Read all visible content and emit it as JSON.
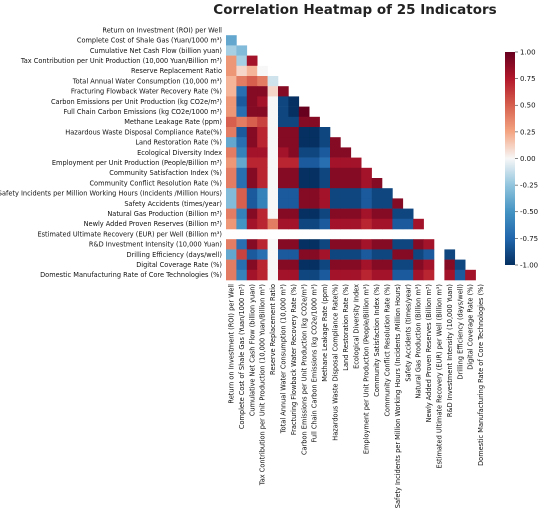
{
  "chart_data": {
    "type": "heatmap",
    "title": "Correlation Heatmap of 25 Indicators",
    "xlabel": "",
    "ylabel": "",
    "colormap": "RdBu_r",
    "colors": {
      "low": "#053061",
      "mid": "#f7f7f7",
      "high": "#67001f"
    },
    "vmin": -1.0,
    "vmax": 1.0,
    "colorbar_ticks": [
      "1.00",
      "0.75",
      "0.50",
      "0.25",
      "0.00",
      "-0.25",
      "-0.50",
      "-0.75",
      "-1.00"
    ],
    "mask": "upper triangle (lower triangle shown, diagonal excluded)",
    "labels": [
      "Return on Investment (ROI) per Well",
      "Complete Cost of Shale Gas (Yuan/1000 m³)",
      "Cumulative Net Cash Flow (billion yuan)",
      "Tax Contribution per Unit Production (10,000 Yuan/Billion m³)",
      "Reserve Replacement Ratio",
      "Total Annual Water Consumption (10,000 m³)",
      "Fracturing Flowback Water Recovery Rate (%)",
      "Carbon Emissions per Unit Production (kg CO2e/m³)",
      "Full Chain Carbon Emissions (kg CO2e/1000 m³)",
      "Methane Leakage Rate (ppm)",
      "Hazardous Waste Disposal Compliance Rate(%)",
      "Land Restoration Rate (%)",
      "Ecological Diversity Index",
      "Employment per Unit Production (People/Billion m³)",
      "Community Satisfaction Index (%)",
      "Community Conflict Resolution Rate (%)",
      "Safety Incidents per Million Working Hours (Incidents /Million Hours)",
      "Safety Accidents (times/year)",
      "Natural Gas Production (Billion m³)",
      "Newly Added Proven Reserves (Billion m³)",
      "Estimated Ultimate Recovery (EUR) per Well (Billion m³)",
      "R&D Investment Intensity (10,000 Yuan)",
      "Drilling Efficiency (days/well)",
      "Digital Coverage Rate (%)",
      "Domestic Manufacturing Rate of Core Technologies (%)"
    ],
    "values": [
      [],
      [
        -0.4
      ],
      [
        -0.2,
        -0.3
      ],
      [
        0.3,
        -0.2,
        0.8
      ],
      [
        0.3,
        0.1,
        0.2,
        0.0
      ],
      [
        0.2,
        0.4,
        0.5,
        0.4,
        -0.1
      ],
      [
        0.2,
        -0.7,
        0.9,
        0.9,
        0.1,
        0.9
      ],
      [
        0.3,
        -0.8,
        0.9,
        0.8,
        0.0,
        -0.9,
        -1.0
      ],
      [
        0.3,
        -0.7,
        0.9,
        0.9,
        0.0,
        -0.9,
        -1.0,
        1.0
      ],
      [
        0.5,
        0.4,
        0.5,
        0.6,
        0.0,
        -0.9,
        -0.9,
        0.9,
        0.9
      ],
      [
        0.4,
        -0.8,
        0.9,
        0.7,
        0.0,
        0.9,
        0.9,
        -1.0,
        -1.0,
        -0.9
      ],
      [
        -0.4,
        -0.7,
        0.9,
        0.7,
        0.0,
        0.9,
        0.9,
        -1.0,
        -1.0,
        -0.9,
        0.9
      ],
      [
        0.4,
        -0.6,
        0.8,
        0.8,
        0.0,
        0.8,
        0.9,
        -0.9,
        -0.9,
        -0.8,
        0.9,
        0.9
      ],
      [
        0.3,
        -0.4,
        0.7,
        0.7,
        0.0,
        0.7,
        0.7,
        -0.8,
        -0.8,
        -0.7,
        0.8,
        0.8,
        0.8
      ],
      [
        0.4,
        -0.7,
        0.9,
        0.7,
        0.0,
        0.9,
        0.9,
        -1.0,
        -1.0,
        -0.9,
        0.9,
        0.9,
        0.9,
        0.8
      ],
      [
        0.4,
        -0.7,
        0.9,
        0.7,
        0.0,
        0.9,
        0.9,
        -1.0,
        -1.0,
        -0.9,
        0.9,
        0.9,
        0.9,
        0.8,
        0.9
      ],
      [
        -0.3,
        0.5,
        -0.8,
        -0.6,
        0.0,
        -0.8,
        -0.8,
        0.9,
        0.9,
        0.8,
        -0.9,
        -0.9,
        -0.9,
        -0.8,
        -0.9,
        -0.9
      ],
      [
        -0.3,
        0.5,
        -0.8,
        -0.6,
        0.0,
        -0.8,
        -0.8,
        0.9,
        0.9,
        0.8,
        -0.9,
        -0.9,
        -0.9,
        -0.8,
        -0.9,
        -0.9,
        0.9
      ],
      [
        0.4,
        -0.6,
        0.9,
        0.7,
        0.0,
        0.9,
        0.9,
        -1.0,
        -1.0,
        -0.9,
        0.9,
        0.9,
        0.9,
        0.8,
        0.9,
        0.9,
        -0.9,
        -0.9
      ],
      [
        0.3,
        -0.5,
        0.8,
        0.7,
        0.4,
        0.8,
        0.8,
        -0.9,
        -0.9,
        -0.8,
        0.8,
        0.8,
        0.8,
        0.7,
        0.8,
        0.8,
        -0.8,
        -0.8,
        0.8
      ],
      [
        null,
        null,
        null,
        null,
        null,
        null,
        null,
        null,
        null,
        null,
        null,
        null,
        null,
        null,
        null,
        null,
        null,
        null,
        null,
        null
      ],
      [
        0.4,
        -0.7,
        0.9,
        0.7,
        0.0,
        0.9,
        0.9,
        -1.0,
        -1.0,
        -0.9,
        0.9,
        0.9,
        0.9,
        0.8,
        0.9,
        0.9,
        -0.9,
        -0.9,
        0.9,
        0.8,
        null
      ],
      [
        -0.4,
        0.6,
        -0.8,
        -0.7,
        0.0,
        -0.8,
        -0.8,
        0.9,
        0.9,
        0.8,
        -0.9,
        -0.9,
        -0.9,
        -0.8,
        -0.9,
        -0.9,
        0.9,
        0.9,
        -0.9,
        -0.8,
        null,
        -0.9
      ],
      [
        0.4,
        -0.7,
        0.9,
        0.7,
        0.0,
        0.9,
        0.9,
        -1.0,
        -1.0,
        -0.9,
        0.9,
        0.9,
        0.9,
        0.8,
        0.9,
        0.9,
        -0.9,
        -0.9,
        0.9,
        0.8,
        null,
        0.9,
        -0.9
      ],
      [
        0.4,
        -0.6,
        0.8,
        0.7,
        0.0,
        0.8,
        0.8,
        -0.9,
        -0.9,
        -0.8,
        0.8,
        0.8,
        0.8,
        0.7,
        0.8,
        0.8,
        -0.8,
        -0.8,
        0.8,
        0.7,
        null,
        0.8,
        -0.8,
        0.8
      ]
    ]
  }
}
